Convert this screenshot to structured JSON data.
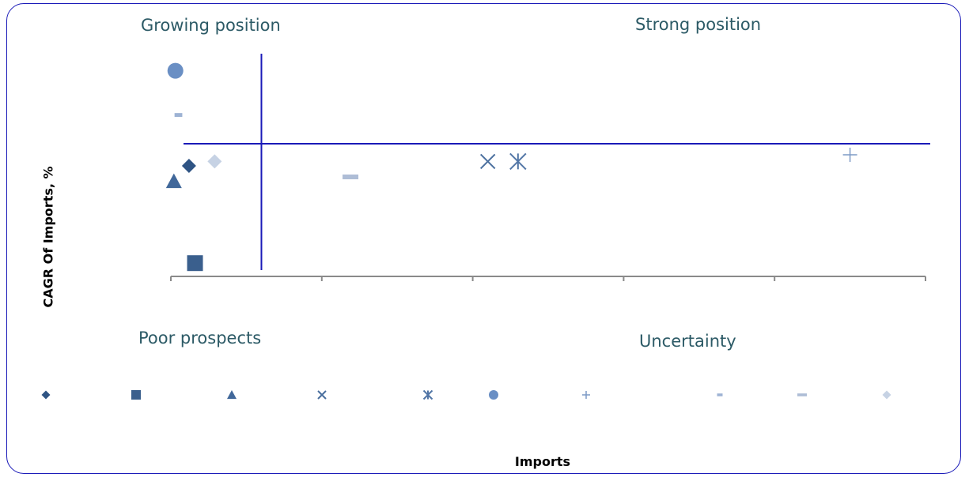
{
  "quadrants": {
    "top_left": "Growing position",
    "top_right": "Strong position",
    "bottom_left": "Poor prospects",
    "bottom_right": "Uncertainty"
  },
  "chart_data": {
    "type": "scatter",
    "title": "",
    "xlabel": "Imports",
    "ylabel": "CAGR Of Imports, %",
    "xlim": [
      0,
      5
    ],
    "ylim": [
      0,
      1
    ],
    "x_ticks": [
      0,
      1,
      2,
      3,
      4,
      5
    ],
    "grid": false,
    "legend_position": "bottom",
    "reference_lines": {
      "x": 0.6,
      "y": 0.6
    },
    "series": [
      {
        "name": "",
        "marker": "diamond",
        "color": "#2f5484",
        "x": 0.12,
        "y": 0.5
      },
      {
        "name": "",
        "marker": "square",
        "color": "#3a5f8d",
        "x": 0.16,
        "y": 0.06
      },
      {
        "name": "",
        "marker": "triangle",
        "color": "#41689a",
        "x": 0.02,
        "y": 0.43
      },
      {
        "name": "",
        "marker": "x",
        "color": "#4a6f9e",
        "x": 2.1,
        "y": 0.52
      },
      {
        "name": "",
        "marker": "star",
        "color": "#5276a6",
        "x": 2.3,
        "y": 0.52
      },
      {
        "name": "",
        "marker": "circle",
        "color": "#6a8fc4",
        "x": 0.03,
        "y": 0.93
      },
      {
        "name": "",
        "marker": "plus",
        "color": "#7d9ac6",
        "x": 4.5,
        "y": 0.55
      },
      {
        "name": "",
        "marker": "dash-small",
        "color": "#9eb3d4",
        "x": 0.05,
        "y": 0.73
      },
      {
        "name": "",
        "marker": "dash",
        "color": "#aebdd6",
        "x": 1.19,
        "y": 0.45
      },
      {
        "name": "",
        "marker": "diamond",
        "color": "#c6d2e4",
        "x": 0.29,
        "y": 0.52
      }
    ]
  }
}
